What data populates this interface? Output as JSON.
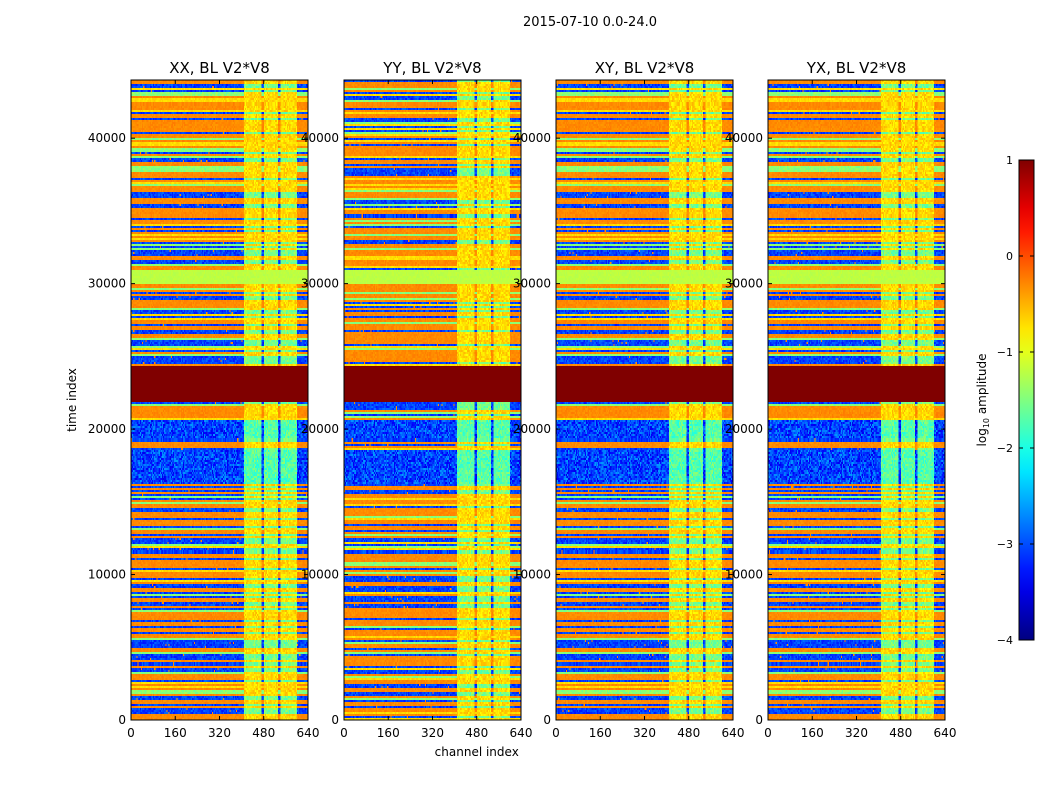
{
  "figure": {
    "suptitle": "2015-07-10 0.0-24.0"
  },
  "chart_data": {
    "type": "heatmap",
    "panels": [
      {
        "title": "XX, BL V2*V8",
        "pol": "XX",
        "baseline": "V2*V8"
      },
      {
        "title": "YY, BL V2*V8",
        "pol": "YY",
        "baseline": "V2*V8"
      },
      {
        "title": "XY, BL V2*V8",
        "pol": "XY",
        "baseline": "V2*V8"
      },
      {
        "title": "YX, BL V2*V8",
        "pol": "YX",
        "baseline": "V2*V8"
      }
    ],
    "xlabel": "channel index",
    "ylabel": "time index",
    "xlim": [
      0,
      640
    ],
    "ylim": [
      0,
      44000
    ],
    "xticks": [
      0,
      160,
      320,
      480,
      640
    ],
    "yticks": [
      0,
      10000,
      20000,
      30000,
      40000
    ],
    "colorbar": {
      "label_prefix": "log",
      "label_sub": "10",
      "label_suffix": " amplitude",
      "min": -4,
      "max": 1,
      "ticks": [
        1,
        0,
        -1,
        -2,
        -3,
        -4
      ],
      "tick_labels": [
        "1",
        "0",
        "−1",
        "−2",
        "−3",
        "−4"
      ],
      "colormap": "jet"
    },
    "structure": {
      "rfi_channel_band": [
        410,
        600
      ],
      "saturated_time_range": [
        21800,
        24300
      ],
      "saturated_log_amplitude": 1.0,
      "flat_green_time_range": [
        30000,
        31000
      ],
      "flat_green_log_amplitude": -1.2,
      "low_time_ranges": [
        [
          16200,
          18500
        ],
        [
          19400,
          20600
        ]
      ],
      "background_log_amplitude": -0.3,
      "low_log_amplitude": -3.5
    }
  }
}
